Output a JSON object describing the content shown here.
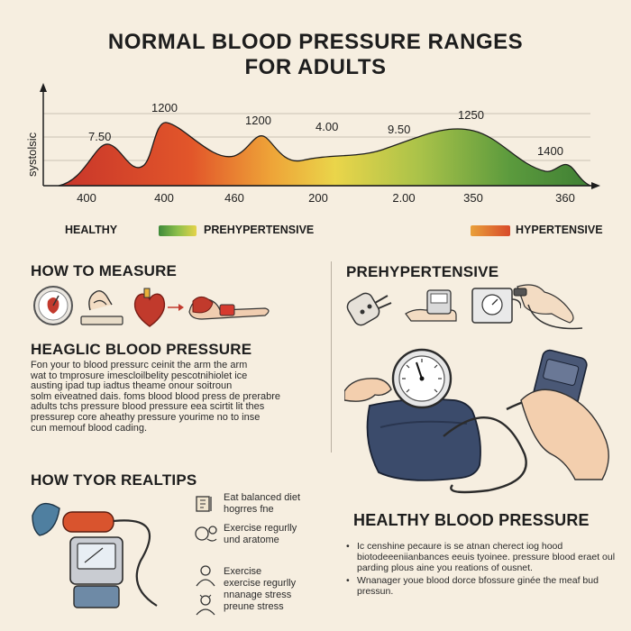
{
  "title_line1": "NORMAL BLOOD PRESSURE RANGES",
  "title_line2": "FOR ADULTS",
  "chart_data": {
    "type": "area",
    "ylabel": "systolsic",
    "x_tick_labels": [
      "400",
      "400",
      "460",
      "200",
      "2.00",
      "350",
      "360"
    ],
    "peak_labels": [
      "7.50",
      "1200",
      "1200",
      "4.00",
      "9.50",
      "1250",
      "1400"
    ]
  },
  "legend": {
    "healthy": "HEALTHY",
    "prehypertensive": "PREHYPERTENSIVE",
    "hypertensive": "HYPERTENSIVE",
    "colors": {
      "green": "#3f8a3a",
      "yellow": "#e5d34a",
      "red": "#d84a2a"
    }
  },
  "how_to_measure": {
    "heading": "HOW TO MEASURE"
  },
  "prehyp_section": {
    "heading": "PREHYPERTENSIVE"
  },
  "heaglic": {
    "heading": "HEAGLIC BLOOD PRESSURE",
    "lines": [
      "Fon your to blood pressurc ceinit the arm the arm",
      "wat to tmprosure imescloilbelity pescotnihiolet ice",
      "austing ipad tup iadtus theame onour soitroun",
      "solm eiveatned dais. foms blood blood press de prerabre",
      "adults tchs pressure blood pressure eea scirtit lit thes",
      "pressurep core aheathy pressure yourime no to inse",
      "cun memouf blood cading."
    ]
  },
  "tips": {
    "heading": "HOW TYOR REALTIPS",
    "items": [
      {
        "line1": "Eat balanced diet",
        "line2": "hogrres fne"
      },
      {
        "line1": "Exercise regurlly",
        "line2": "und aratome"
      },
      {
        "line1": "Exercise",
        "line2": "exercise regurlly",
        "line3": "nnanage stress",
        "line4": "preune stress"
      }
    ]
  },
  "healthy_bp": {
    "heading": "HEALTHY BLOOD PRESSURE",
    "bullets": [
      {
        "text": "Ic censhine pecaure is se atnan cherect iog hood biotodeeeniianbances eeuis tyoinee. pressure blood eraet oul parding plous aine you reations of ousnet."
      },
      {
        "text": "Wnanager youe blood dorce bfossure ginée the meaf bud pressun."
      }
    ]
  },
  "icons": [
    "sphygmomanometer-icon",
    "hand-icon",
    "heart-icon",
    "arm-cuff-icon",
    "plug-icon",
    "wrist-monitor-icon",
    "gauge-icon",
    "meter-icon",
    "hand-pump-icon"
  ]
}
